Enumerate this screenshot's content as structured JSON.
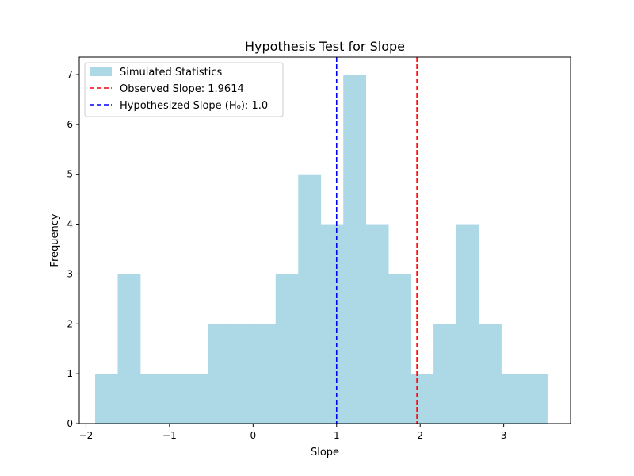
{
  "chart_data": {
    "type": "bar",
    "title": "Hypothesis Test for Slope",
    "xlabel": "Slope",
    "ylabel": "Frequency",
    "xlim": [
      -2.08,
      3.8
    ],
    "ylim": [
      0,
      7.35
    ],
    "x_ticks": [
      -2,
      -1,
      0,
      1,
      2,
      3
    ],
    "y_ticks": [
      0,
      1,
      2,
      3,
      4,
      5,
      6,
      7
    ],
    "grid": false,
    "legend_position": "upper-left",
    "bin_edges": [
      -1.89,
      -1.62,
      -1.35,
      -1.08,
      -0.81,
      -0.54,
      -0.27,
      0.0,
      0.27,
      0.54,
      0.81,
      1.08,
      1.35,
      1.62,
      1.89,
      2.16,
      2.43,
      2.7,
      2.97,
      3.24,
      3.52
    ],
    "series": [
      {
        "name": "Simulated Statistics",
        "color": "#add8e6",
        "values": [
          1,
          3,
          1,
          1,
          1,
          2,
          2,
          2,
          3,
          5,
          4,
          7,
          4,
          3,
          1,
          2,
          4,
          2,
          1,
          1
        ]
      }
    ],
    "reference_lines": [
      {
        "name": "Observed Slope: 1.9614",
        "x": 1.9614,
        "color": "#ff0000"
      },
      {
        "name": "Hypothesized Slope (H₀): 1.0",
        "x": 1.0,
        "color": "#0000ff"
      }
    ]
  }
}
